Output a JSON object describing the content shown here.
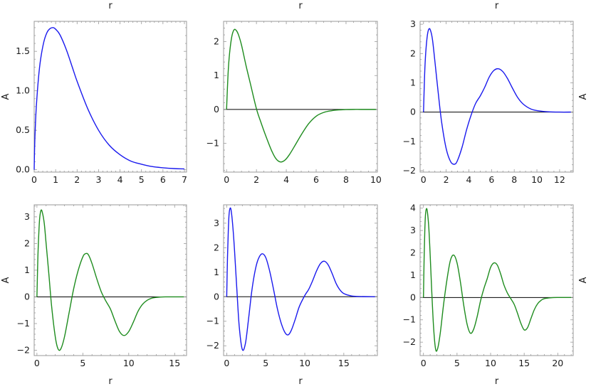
{
  "chart_data": [
    {
      "type": "line",
      "xlabel": "r",
      "xlabel_position": "top",
      "ylabel": "A",
      "ylabel_position": "left",
      "xlim": [
        0,
        7.1
      ],
      "ylim": [
        -0.03,
        1.88
      ],
      "xticks": [
        0,
        1,
        2,
        3,
        4,
        5,
        6,
        7
      ],
      "yticks": [
        0.0,
        0.5,
        1.0,
        1.5
      ],
      "ytick_labels": [
        "0.0",
        "0.5",
        "1.0",
        "1.5"
      ],
      "zero_line": false,
      "color": "#1a1aee",
      "series": [
        {
          "x": [
            0,
            0.02,
            0.05,
            0.1,
            0.2,
            0.3,
            0.45,
            0.6,
            0.75,
            0.9,
            1.0,
            1.2,
            1.5,
            1.8,
            2.0,
            2.5,
            3.0,
            3.5,
            4.0,
            4.5,
            5.0,
            5.5,
            6.0,
            6.5,
            7.0
          ],
          "y": [
            0,
            0.28,
            0.52,
            0.8,
            1.16,
            1.4,
            1.62,
            1.74,
            1.79,
            1.8,
            1.78,
            1.71,
            1.52,
            1.28,
            1.12,
            0.77,
            0.5,
            0.31,
            0.19,
            0.11,
            0.07,
            0.04,
            0.025,
            0.015,
            0.01
          ]
        }
      ]
    },
    {
      "type": "line",
      "xlabel": "r",
      "xlabel_position": "top",
      "ylabel": "",
      "ylabel_position": "none",
      "xlim": [
        -0.2,
        10.1
      ],
      "ylim": [
        -1.85,
        2.6
      ],
      "xticks": [
        0,
        2,
        4,
        6,
        8,
        10
      ],
      "yticks": [
        -1,
        0,
        1,
        2
      ],
      "ytick_labels": [
        "−1",
        "0",
        "1",
        "2"
      ],
      "zero_line": true,
      "color": "#1e8c1e",
      "series": [
        {
          "x": [
            0,
            0.1,
            0.2,
            0.35,
            0.5,
            0.65,
            0.8,
            1.0,
            1.3,
            1.6,
            2.0,
            2.3,
            2.6,
            3.0,
            3.3,
            3.6,
            3.9,
            4.2,
            4.6,
            5.0,
            5.5,
            6.0,
            6.5,
            7.0,
            7.5,
            8.0,
            8.5,
            9.0,
            10.0
          ],
          "y": [
            0,
            1.05,
            1.65,
            2.15,
            2.35,
            2.33,
            2.2,
            1.9,
            1.3,
            0.75,
            0.02,
            -0.38,
            -0.75,
            -1.2,
            -1.45,
            -1.55,
            -1.5,
            -1.34,
            -1.05,
            -0.75,
            -0.42,
            -0.2,
            -0.09,
            -0.04,
            -0.015,
            -0.005,
            0,
            0,
            0
          ]
        }
      ]
    },
    {
      "type": "line",
      "xlabel": "r",
      "xlabel_position": "top",
      "ylabel": "A",
      "ylabel_position": "right",
      "xlim": [
        -0.3,
        13.2
      ],
      "ylim": [
        -2.05,
        3.1
      ],
      "xticks": [
        0,
        2,
        4,
        6,
        8,
        10,
        12
      ],
      "yticks": [
        -2,
        -1,
        0,
        1,
        2,
        3
      ],
      "ytick_labels": [
        "−2",
        "−1",
        "0",
        "1",
        "2",
        "3"
      ],
      "zero_line": true,
      "color": "#1a1aee",
      "series": [
        {
          "x": [
            0,
            0.1,
            0.2,
            0.35,
            0.5,
            0.65,
            0.8,
            1.0,
            1.3,
            1.6,
            2.0,
            2.4,
            2.75,
            3.0,
            3.4,
            3.8,
            4.2,
            4.6,
            5.0,
            5.4,
            5.8,
            6.2,
            6.6,
            7.0,
            7.4,
            7.8,
            8.3,
            8.8,
            9.5,
            10.2,
            11.0,
            12.0,
            13.0
          ],
          "y": [
            0,
            1.3,
            2.05,
            2.65,
            2.85,
            2.75,
            2.45,
            1.75,
            0.65,
            -0.35,
            -1.25,
            -1.7,
            -1.78,
            -1.65,
            -1.2,
            -0.6,
            -0.1,
            0.3,
            0.55,
            0.85,
            1.2,
            1.42,
            1.48,
            1.38,
            1.15,
            0.85,
            0.5,
            0.27,
            0.1,
            0.04,
            0.01,
            0,
            0
          ]
        }
      ]
    },
    {
      "type": "line",
      "xlabel": "r",
      "xlabel_position": "bottom",
      "ylabel": "A",
      "ylabel_position": "left",
      "xlim": [
        -0.3,
        16.3
      ],
      "ylim": [
        -2.2,
        3.45
      ],
      "xticks": [
        0,
        5,
        10,
        15
      ],
      "yticks": [
        -2,
        -1,
        0,
        1,
        2,
        3
      ],
      "ytick_labels": [
        "−2",
        "−1",
        "0",
        "1",
        "2",
        "3"
      ],
      "zero_line": true,
      "color": "#1e8c1e",
      "series": [
        {
          "x": [
            0,
            0.1,
            0.2,
            0.3,
            0.45,
            0.6,
            0.8,
            1.0,
            1.3,
            1.6,
            2.0,
            2.3,
            2.6,
            3.0,
            3.5,
            4.0,
            4.5,
            5.0,
            5.3,
            5.6,
            6.0,
            6.5,
            7.0,
            7.5,
            8.0,
            8.5,
            9.0,
            9.5,
            10.0,
            10.5,
            11.0,
            11.5,
            12.0,
            12.5,
            13.0,
            14.0,
            15.0,
            16.0
          ],
          "y": [
            0,
            1.45,
            2.35,
            2.95,
            3.25,
            3.15,
            2.75,
            2.0,
            0.85,
            -0.35,
            -1.5,
            -1.95,
            -1.95,
            -1.5,
            -0.6,
            0.3,
            1.0,
            1.5,
            1.62,
            1.58,
            1.25,
            0.7,
            0.2,
            -0.15,
            -0.45,
            -0.9,
            -1.3,
            -1.45,
            -1.3,
            -0.95,
            -0.55,
            -0.28,
            -0.13,
            -0.05,
            -0.02,
            0,
            0,
            0
          ]
        }
      ]
    },
    {
      "type": "line",
      "xlabel": "r",
      "xlabel_position": "bottom",
      "ylabel": "",
      "ylabel_position": "none",
      "xlim": [
        -0.4,
        19.3
      ],
      "ylim": [
        -2.4,
        3.75
      ],
      "xticks": [
        0,
        5,
        10,
        15
      ],
      "yticks": [
        -2,
        -1,
        0,
        1,
        2,
        3
      ],
      "ytick_labels": [
        "−2",
        "−1",
        "0",
        "1",
        "2",
        "3"
      ],
      "zero_line": true,
      "color": "#1a1aee",
      "series": [
        {
          "x": [
            0,
            0.1,
            0.2,
            0.3,
            0.45,
            0.6,
            0.8,
            1.0,
            1.3,
            1.6,
            2.0,
            2.4,
            2.8,
            3.2,
            3.6,
            4.0,
            4.5,
            5.0,
            5.5,
            6.0,
            6.5,
            7.0,
            7.5,
            7.9,
            8.3,
            8.8,
            9.3,
            10.0,
            10.5,
            11.0,
            11.5,
            12.0,
            12.5,
            13.0,
            13.5,
            14.0,
            14.5,
            15.0,
            16.0,
            17.0,
            19.0
          ],
          "y": [
            0,
            1.6,
            2.65,
            3.35,
            3.62,
            3.45,
            2.8,
            1.9,
            0.3,
            -1.2,
            -2.15,
            -1.9,
            -0.9,
            0.2,
            1.0,
            1.5,
            1.75,
            1.6,
            1.05,
            0.3,
            -0.5,
            -1.1,
            -1.48,
            -1.55,
            -1.35,
            -0.9,
            -0.4,
            0.05,
            0.3,
            0.65,
            1.05,
            1.35,
            1.45,
            1.3,
            0.95,
            0.55,
            0.28,
            0.13,
            0.03,
            0.01,
            0
          ]
        }
      ]
    },
    {
      "type": "line",
      "xlabel": "r",
      "xlabel_position": "bottom",
      "ylabel": "A",
      "ylabel_position": "right",
      "xlim": [
        -0.5,
        22.3
      ],
      "ylim": [
        -2.6,
        4.15
      ],
      "xticks": [
        0,
        5,
        10,
        15,
        20
      ],
      "yticks": [
        -2,
        -1,
        0,
        1,
        2,
        3,
        4
      ],
      "ytick_labels": [
        "−2",
        "−1",
        "0",
        "1",
        "2",
        "3",
        "4"
      ],
      "zero_line": true,
      "color": "#1e8c1e",
      "series": [
        {
          "x": [
            0,
            0.1,
            0.2,
            0.3,
            0.45,
            0.6,
            0.8,
            1.0,
            1.2,
            1.5,
            1.8,
            2.1,
            2.5,
            3.0,
            3.5,
            4.0,
            4.5,
            5.0,
            5.5,
            6.0,
            6.5,
            7.0,
            7.5,
            8.0,
            8.5,
            9.0,
            9.5,
            10.0,
            10.5,
            11.0,
            11.5,
            12.0,
            12.5,
            13.0,
            13.5,
            14.0,
            14.5,
            15.0,
            15.5,
            16.0,
            16.5,
            17.0,
            17.5,
            18.0,
            19.0,
            20.0,
            22.0
          ],
          "y": [
            0,
            1.8,
            3.0,
            3.7,
            3.98,
            3.8,
            3.1,
            1.9,
            0.5,
            -1.3,
            -2.3,
            -2.3,
            -1.6,
            -0.3,
            0.8,
            1.65,
            1.9,
            1.55,
            0.7,
            -0.35,
            -1.2,
            -1.6,
            -1.4,
            -0.85,
            -0.15,
            0.4,
            0.85,
            1.35,
            1.55,
            1.45,
            1.05,
            0.55,
            0.2,
            -0.05,
            -0.3,
            -0.7,
            -1.15,
            -1.45,
            -1.35,
            -0.95,
            -0.55,
            -0.28,
            -0.13,
            -0.05,
            -0.01,
            0,
            0
          ]
        }
      ]
    }
  ]
}
